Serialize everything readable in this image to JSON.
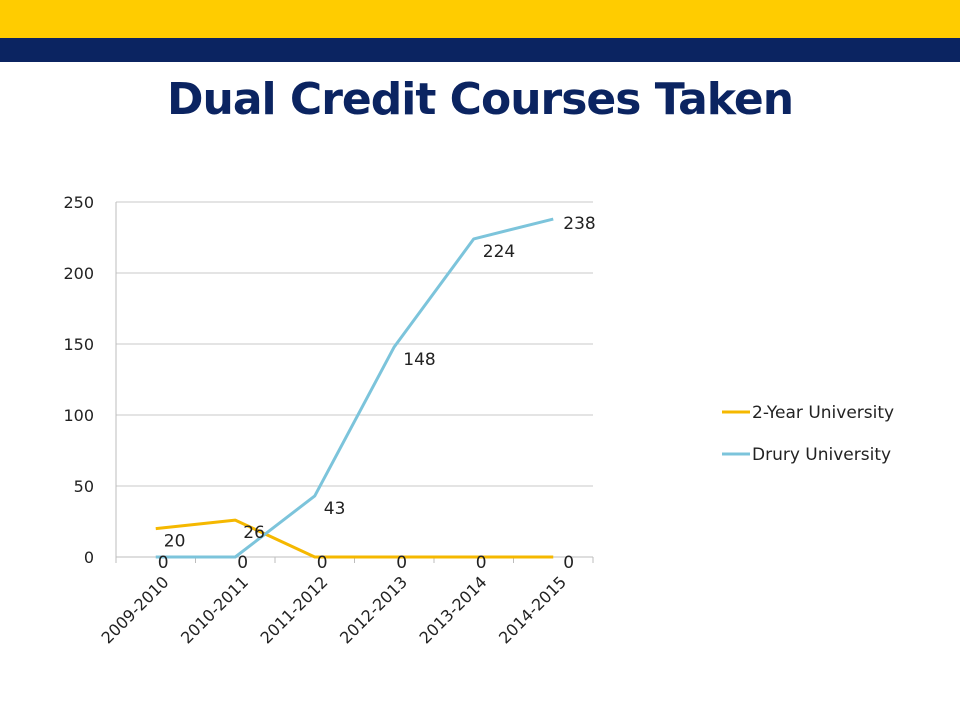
{
  "slide": {
    "title": "Dual Credit Courses Taken",
    "colors": {
      "gold_band": "#FFCC00",
      "navy_band": "#0B2461",
      "title": "#0B2461"
    }
  },
  "chart_data": {
    "type": "line",
    "title": "",
    "xlabel": "",
    "ylabel": "",
    "categories": [
      "2009-2010",
      "2010-2011",
      "2011-2012",
      "2012-2013",
      "2013-2014",
      "2014-2015"
    ],
    "ylim": [
      0,
      250
    ],
    "yticks": [
      0,
      50,
      100,
      150,
      200,
      250
    ],
    "grid": "horizontal",
    "legend_position": "right",
    "series": [
      {
        "name": "2-Year University",
        "color": "#F5B800",
        "values": [
          20,
          26,
          0,
          0,
          0,
          0
        ]
      },
      {
        "name": "Drury University",
        "color": "#7CC4DB",
        "values": [
          0,
          0,
          43,
          148,
          224,
          238
        ]
      }
    ]
  }
}
